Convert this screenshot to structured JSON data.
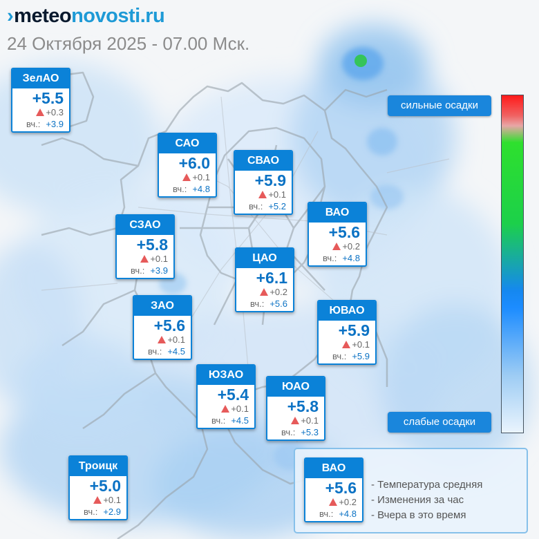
{
  "header": {
    "logo_mark": "›",
    "logo_meteo": "meteo",
    "logo_novosti": "novosti.ru",
    "datetime": "24 Октября 2025 - 07.00 Мск."
  },
  "colors": {
    "accent": "#0b82d8",
    "temperature_text": "#0b72c4",
    "increase_marker": "#e65a5a",
    "precip_button": "#1a86dc"
  },
  "districts": [
    {
      "key": "zelao",
      "name": "ЗелАО",
      "temp": "+5.5",
      "change": "+0.3",
      "yest_label": "вч.:",
      "yest": "+3.9"
    },
    {
      "key": "sao",
      "name": "САО",
      "temp": "+6.0",
      "change": "+0.1",
      "yest_label": "вч.:",
      "yest": "+4.8"
    },
    {
      "key": "svao",
      "name": "СВАО",
      "temp": "+5.9",
      "change": "+0.1",
      "yest_label": "вч.:",
      "yest": "+5.2"
    },
    {
      "key": "szao",
      "name": "СЗАО",
      "temp": "+5.8",
      "change": "+0.1",
      "yest_label": "вч.:",
      "yest": "+3.9"
    },
    {
      "key": "vao",
      "name": "ВАО",
      "temp": "+5.6",
      "change": "+0.2",
      "yest_label": "вч.:",
      "yest": "+4.8"
    },
    {
      "key": "cao",
      "name": "ЦАО",
      "temp": "+6.1",
      "change": "+0.2",
      "yest_label": "вч.:",
      "yest": "+5.6"
    },
    {
      "key": "zao",
      "name": "ЗАО",
      "temp": "+5.6",
      "change": "+0.1",
      "yest_label": "вч.:",
      "yest": "+4.5"
    },
    {
      "key": "yuvao",
      "name": "ЮВАО",
      "temp": "+5.9",
      "change": "+0.1",
      "yest_label": "вч.:",
      "yest": "+5.9"
    },
    {
      "key": "yuzao",
      "name": "ЮЗАО",
      "temp": "+5.4",
      "change": "+0.1",
      "yest_label": "вч.:",
      "yest": "+4.5"
    },
    {
      "key": "yuao",
      "name": "ЮАО",
      "temp": "+5.8",
      "change": "+0.1",
      "yest_label": "вч.:",
      "yest": "+5.3"
    },
    {
      "key": "troitsk",
      "name": "Троицк",
      "temp": "+5.0",
      "change": "+0.1",
      "yest_label": "вч.:",
      "yest": "+2.9"
    }
  ],
  "precip_scale": {
    "top_label": "сильные осадки",
    "bottom_label": "слабые осадки",
    "colors": [
      "#ff1a1a",
      "#f06262",
      "#2ee02e",
      "#1588f0",
      "#eaf4fd"
    ]
  },
  "legend": {
    "sample": {
      "name": "ВАО",
      "temp": "+5.6",
      "change": "+0.2",
      "yest_label": "вч.:",
      "yest": "+4.8"
    },
    "items": [
      "- Температура средняя",
      "- Изменения за час",
      "- Вчера в это время"
    ]
  }
}
